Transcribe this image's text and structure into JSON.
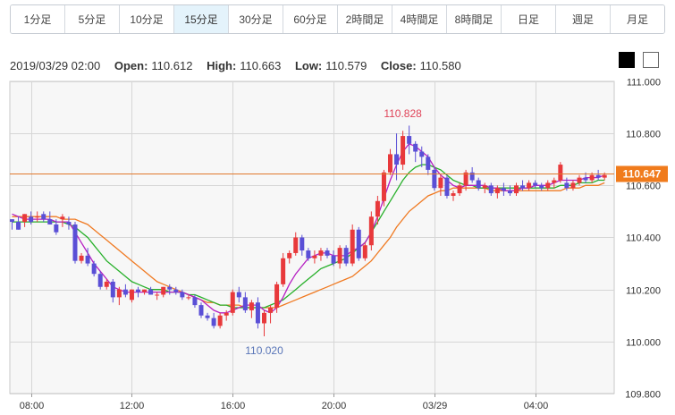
{
  "timeframes": {
    "items": [
      "1分足",
      "5分足",
      "10分足",
      "15分足",
      "30分足",
      "60分足",
      "2時間足",
      "4時間足",
      "8時間足",
      "日足",
      "週足",
      "月足"
    ],
    "active_index": 3
  },
  "ohlc": {
    "datetime": "2019/03/29 02:00",
    "open_label": "Open:",
    "open": "110.612",
    "high_label": "High:",
    "high": "110.663",
    "low_label": "Low:",
    "low": "110.579",
    "close_label": "Close:",
    "close": "110.580"
  },
  "colors": {
    "up": "#e8393b",
    "down": "#5a4fd6",
    "ma_short": "#b51ec2",
    "ma_mid": "#27b02a",
    "ma_long": "#f07a22",
    "price_line": "#e0782c",
    "price_label_bg": "#f07b1c",
    "grid": "#d6d6d6",
    "plot_bg": "#f7f7f7"
  },
  "theme_toggle": {
    "dark": "black",
    "light": "white"
  },
  "chart_data": {
    "type": "candlestick",
    "ylim": [
      109.8,
      111.0
    ],
    "y_ticks": [
      "111.000",
      "110.800",
      "110.600",
      "110.400",
      "110.200",
      "110.000",
      "109.800"
    ],
    "x_ticks": [
      {
        "label": "08:00",
        "index": 3
      },
      {
        "label": "12:00",
        "index": 19
      },
      {
        "label": "16:00",
        "index": 35
      },
      {
        "label": "20:00",
        "index": 51
      },
      {
        "label": "03/29",
        "index": 67
      },
      {
        "label": "04:00",
        "index": 83
      }
    ],
    "current_price": "110.647",
    "current_price_value": 110.647,
    "annotations": [
      {
        "label": "110.828",
        "index": 62,
        "value": 110.828,
        "position": "above"
      },
      {
        "label": "110.020",
        "index": 40,
        "value": 110.02,
        "position": "below"
      }
    ],
    "candles": [
      [
        110.47,
        110.47,
        110.43,
        110.46
      ],
      [
        110.46,
        110.48,
        110.43,
        110.43
      ],
      [
        110.46,
        110.49,
        110.44,
        110.49
      ],
      [
        110.48,
        110.5,
        110.45,
        110.46
      ],
      [
        110.48,
        110.5,
        110.46,
        110.48
      ],
      [
        110.49,
        110.5,
        110.46,
        110.47
      ],
      [
        110.47,
        110.5,
        110.45,
        110.45
      ],
      [
        110.45,
        110.47,
        110.41,
        110.42
      ],
      [
        110.47,
        110.49,
        110.44,
        110.48
      ],
      [
        110.46,
        110.48,
        110.43,
        110.45
      ],
      [
        110.45,
        110.46,
        110.3,
        110.31
      ],
      [
        110.31,
        110.34,
        110.3,
        110.33
      ],
      [
        110.33,
        110.36,
        110.29,
        110.3
      ],
      [
        110.3,
        110.31,
        110.25,
        110.26
      ],
      [
        110.26,
        110.27,
        110.2,
        110.21
      ],
      [
        110.21,
        110.24,
        110.2,
        110.23
      ],
      [
        110.23,
        110.24,
        110.15,
        110.17
      ],
      [
        110.17,
        110.21,
        110.14,
        110.2
      ],
      [
        110.2,
        110.22,
        110.17,
        110.18
      ],
      [
        110.16,
        110.2,
        110.15,
        110.2
      ],
      [
        110.2,
        110.21,
        110.17,
        110.19
      ],
      [
        110.19,
        110.2,
        110.18,
        110.2
      ],
      [
        110.2,
        110.21,
        110.18,
        110.18
      ],
      [
        110.18,
        110.19,
        110.16,
        110.18
      ],
      [
        110.18,
        110.21,
        110.17,
        110.21
      ],
      [
        110.21,
        110.22,
        110.18,
        110.2
      ],
      [
        110.2,
        110.21,
        110.18,
        110.19
      ],
      [
        110.19,
        110.2,
        110.16,
        110.17
      ],
      [
        110.17,
        110.18,
        110.16,
        110.17
      ],
      [
        110.17,
        110.18,
        110.13,
        110.14
      ],
      [
        110.14,
        110.15,
        110.09,
        110.1
      ],
      [
        110.1,
        110.11,
        110.08,
        110.09
      ],
      [
        110.09,
        110.11,
        110.05,
        110.06
      ],
      [
        110.06,
        110.11,
        110.05,
        110.1
      ],
      [
        110.1,
        110.12,
        110.08,
        110.11
      ],
      [
        110.11,
        110.2,
        110.1,
        110.19
      ],
      [
        110.19,
        110.21,
        110.15,
        110.17
      ],
      [
        110.17,
        110.19,
        110.11,
        110.12
      ],
      [
        110.12,
        110.16,
        110.09,
        110.15
      ],
      [
        110.15,
        110.17,
        110.05,
        110.07
      ],
      [
        110.07,
        110.12,
        110.02,
        110.11
      ],
      [
        110.11,
        110.14,
        110.07,
        110.13
      ],
      [
        110.13,
        110.23,
        110.11,
        110.22
      ],
      [
        110.22,
        110.34,
        110.21,
        110.32
      ],
      [
        110.32,
        110.35,
        110.3,
        110.34
      ],
      [
        110.34,
        110.42,
        110.33,
        110.4
      ],
      [
        110.4,
        110.41,
        110.33,
        110.35
      ],
      [
        110.35,
        110.36,
        110.31,
        110.32
      ],
      [
        110.32,
        110.35,
        110.3,
        110.33
      ],
      [
        110.33,
        110.36,
        110.31,
        110.35
      ],
      [
        110.35,
        110.36,
        110.32,
        110.33
      ],
      [
        110.33,
        110.35,
        110.29,
        110.3
      ],
      [
        110.3,
        110.37,
        110.28,
        110.36
      ],
      [
        110.36,
        110.37,
        110.29,
        110.3
      ],
      [
        110.3,
        110.45,
        110.29,
        110.43
      ],
      [
        110.43,
        110.44,
        110.31,
        110.32
      ],
      [
        110.32,
        110.38,
        110.31,
        110.37
      ],
      [
        110.37,
        110.5,
        110.35,
        110.48
      ],
      [
        110.48,
        110.56,
        110.45,
        110.54
      ],
      [
        110.54,
        110.66,
        110.52,
        110.65
      ],
      [
        110.65,
        110.74,
        110.64,
        110.72
      ],
      [
        110.72,
        110.8,
        110.62,
        110.68
      ],
      [
        110.68,
        110.81,
        110.66,
        110.79
      ],
      [
        110.79,
        110.83,
        110.72,
        110.76
      ],
      [
        110.76,
        110.77,
        110.69,
        110.73
      ],
      [
        110.73,
        110.75,
        110.67,
        110.71
      ],
      [
        110.71,
        110.72,
        110.64,
        110.66
      ],
      [
        110.66,
        110.67,
        110.58,
        110.59
      ],
      [
        110.59,
        110.64,
        110.56,
        110.63
      ],
      [
        110.63,
        110.64,
        110.55,
        110.56
      ],
      [
        110.56,
        110.58,
        110.54,
        110.57
      ],
      [
        110.57,
        110.61,
        110.56,
        110.6
      ],
      [
        110.6,
        110.66,
        110.58,
        110.65
      ],
      [
        110.65,
        110.67,
        110.61,
        110.62
      ],
      [
        110.62,
        110.63,
        110.58,
        110.59
      ],
      [
        110.59,
        110.61,
        110.57,
        110.6
      ],
      [
        110.6,
        110.61,
        110.56,
        110.57
      ],
      [
        110.57,
        110.6,
        110.55,
        110.59
      ],
      [
        110.59,
        110.61,
        110.56,
        110.58
      ],
      [
        110.58,
        110.6,
        110.56,
        110.57
      ],
      [
        110.57,
        110.61,
        110.56,
        110.6
      ],
      [
        110.6,
        110.62,
        110.58,
        110.59
      ],
      [
        110.59,
        110.62,
        110.58,
        110.61
      ],
      [
        110.61,
        110.62,
        110.59,
        110.6
      ],
      [
        110.6,
        110.61,
        110.58,
        110.59
      ],
      [
        110.59,
        110.62,
        110.58,
        110.61
      ],
      [
        110.61,
        110.63,
        110.59,
        110.62
      ],
      [
        110.62,
        110.69,
        110.61,
        110.68
      ],
      [
        110.61,
        110.63,
        110.58,
        110.59
      ],
      [
        110.59,
        110.62,
        110.58,
        110.61
      ],
      [
        110.61,
        110.64,
        110.6,
        110.63
      ],
      [
        110.63,
        110.65,
        110.61,
        110.62
      ],
      [
        110.62,
        110.65,
        110.61,
        110.64
      ],
      [
        110.64,
        110.66,
        110.62,
        110.63
      ],
      [
        110.63,
        110.65,
        110.62,
        110.64
      ]
    ],
    "ma_short": [
      110.49,
      110.48,
      110.47,
      110.47,
      110.47,
      110.47,
      110.47,
      110.46,
      110.46,
      110.46,
      110.42,
      110.38,
      110.34,
      110.3,
      110.27,
      110.24,
      110.21,
      110.2,
      110.19,
      110.19,
      110.19,
      110.19,
      110.19,
      110.19,
      110.19,
      110.19,
      110.19,
      110.19,
      110.18,
      110.17,
      110.16,
      110.14,
      110.12,
      110.11,
      110.11,
      110.12,
      110.13,
      110.14,
      110.14,
      110.14,
      110.12,
      110.11,
      110.13,
      110.17,
      110.22,
      110.26,
      110.29,
      110.32,
      110.33,
      110.34,
      110.34,
      110.33,
      110.33,
      110.33,
      110.35,
      110.36,
      110.38,
      110.42,
      110.48,
      110.55,
      110.62,
      110.68,
      110.73,
      110.76,
      110.75,
      110.73,
      110.71,
      110.67,
      110.64,
      110.62,
      110.6,
      110.59,
      110.6,
      110.6,
      110.6,
      110.6,
      110.59,
      110.59,
      110.58,
      110.58,
      110.58,
      110.59,
      110.59,
      110.6,
      110.6,
      110.6,
      110.61,
      110.62,
      110.62,
      110.62,
      110.62,
      110.63,
      110.63,
      110.63,
      110.64
    ],
    "ma_mid": [
      110.46,
      110.46,
      110.46,
      110.46,
      110.46,
      110.46,
      110.46,
      110.46,
      110.46,
      110.45,
      110.44,
      110.42,
      110.4,
      110.37,
      110.34,
      110.31,
      110.29,
      110.27,
      110.25,
      110.23,
      110.22,
      110.21,
      110.2,
      110.2,
      110.2,
      110.19,
      110.19,
      110.19,
      110.18,
      110.18,
      110.17,
      110.16,
      110.15,
      110.14,
      110.14,
      110.13,
      110.13,
      110.13,
      110.13,
      110.13,
      110.13,
      110.14,
      110.15,
      110.16,
      110.18,
      110.2,
      110.22,
      110.24,
      110.26,
      110.28,
      110.29,
      110.3,
      110.31,
      110.32,
      110.34,
      110.36,
      110.38,
      110.42,
      110.46,
      110.5,
      110.54,
      110.58,
      110.62,
      110.65,
      110.67,
      110.68,
      110.68,
      110.67,
      110.66,
      110.64,
      110.62,
      110.61,
      110.6,
      110.6,
      110.59,
      110.59,
      110.59,
      110.59,
      110.59,
      110.59,
      110.59,
      110.59,
      110.59,
      110.59,
      110.59,
      110.59,
      110.59,
      110.6,
      110.6,
      110.6,
      110.61,
      110.61,
      110.61,
      110.62,
      110.62
    ],
    "ma_long": [
      110.48,
      110.48,
      110.48,
      110.48,
      110.48,
      110.48,
      110.48,
      110.48,
      110.47,
      110.47,
      110.47,
      110.46,
      110.45,
      110.43,
      110.41,
      110.39,
      110.37,
      110.35,
      110.33,
      110.31,
      110.29,
      110.27,
      110.25,
      110.23,
      110.22,
      110.21,
      110.2,
      110.19,
      110.18,
      110.17,
      110.16,
      110.15,
      110.15,
      110.14,
      110.14,
      110.14,
      110.14,
      110.13,
      110.13,
      110.13,
      110.13,
      110.13,
      110.13,
      110.14,
      110.15,
      110.16,
      110.17,
      110.18,
      110.19,
      110.2,
      110.21,
      110.22,
      110.23,
      110.24,
      110.25,
      110.27,
      110.29,
      110.31,
      110.34,
      110.37,
      110.4,
      110.44,
      110.47,
      110.5,
      110.52,
      110.54,
      110.56,
      110.57,
      110.58,
      110.58,
      110.59,
      110.59,
      110.59,
      110.59,
      110.59,
      110.59,
      110.58,
      110.58,
      110.58,
      110.58,
      110.58,
      110.58,
      110.58,
      110.58,
      110.58,
      110.58,
      110.58,
      110.58,
      110.59,
      110.59,
      110.59,
      110.6,
      110.6,
      110.6,
      110.61
    ]
  }
}
